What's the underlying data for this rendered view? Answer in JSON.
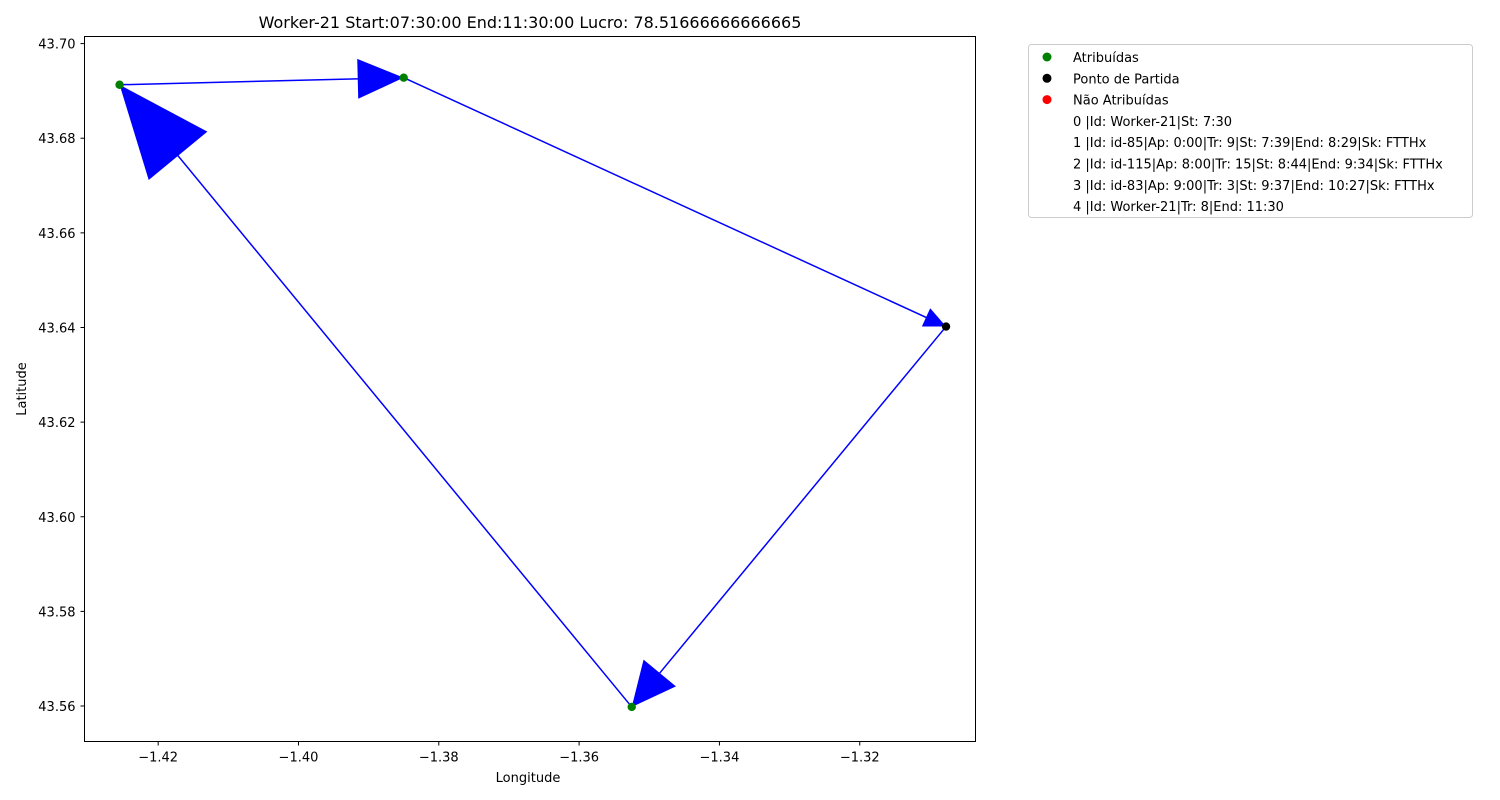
{
  "chart_data": {
    "type": "scatter",
    "title": "Worker-21 Start:07:30:00 End:11:30:00 Lucro: 78.51666666666665",
    "xlabel": "Longitude",
    "ylabel": "Latitude",
    "xlim": [
      -1.4305,
      -1.3035
    ],
    "ylim": [
      43.5525,
      43.7015
    ],
    "x_ticks": [
      -1.42,
      -1.4,
      -1.38,
      -1.36,
      -1.34,
      -1.32
    ],
    "x_tick_labels": [
      "−1.42",
      "−1.40",
      "−1.38",
      "−1.36",
      "−1.34",
      "−1.32"
    ],
    "y_ticks": [
      43.56,
      43.58,
      43.6,
      43.62,
      43.64,
      43.66,
      43.68,
      43.7
    ],
    "y_tick_labels": [
      "43.56",
      "43.58",
      "43.60",
      "43.62",
      "43.64",
      "43.66",
      "43.68",
      "43.70"
    ],
    "grid": false,
    "series": [
      {
        "name": "Atribuídas",
        "color": "#008000",
        "marker": "circle",
        "points": [
          {
            "x": -1.4255,
            "y": 43.6913
          },
          {
            "x": -1.385,
            "y": 43.6928
          },
          {
            "x": -1.3525,
            "y": 43.5598
          }
        ]
      },
      {
        "name": "Ponto de Partida",
        "color": "#000000",
        "marker": "circle",
        "points": [
          {
            "x": -1.3077,
            "y": 43.6402
          }
        ]
      },
      {
        "name": "Não Atribuídas",
        "color": "#ff0000",
        "marker": "circle",
        "points": []
      }
    ],
    "route": {
      "color": "#0000ff",
      "path": [
        {
          "x": -1.3077,
          "y": 43.6402
        },
        {
          "x": -1.3525,
          "y": 43.5598
        },
        {
          "x": -1.4255,
          "y": 43.6913
        },
        {
          "x": -1.385,
          "y": 43.6928
        },
        {
          "x": -1.3077,
          "y": 43.6402
        }
      ]
    },
    "legend": {
      "placement": "outside-right-top",
      "entries": [
        "0 |Id: Worker-21|St: 7:30",
        "1 |Id: id-85|Ap: 0:00|Tr: 9|St: 7:39|End: 8:29|Sk: FTTHx",
        "2 |Id: id-115|Ap: 8:00|Tr: 15|St: 8:44|End: 9:34|Sk: FTTHx",
        "3 |Id: id-83|Ap: 9:00|Tr: 3|St: 9:37|End: 10:27|Sk: FTTHx",
        "4 |Id: Worker-21|Tr: 8|End: 11:30"
      ]
    }
  }
}
